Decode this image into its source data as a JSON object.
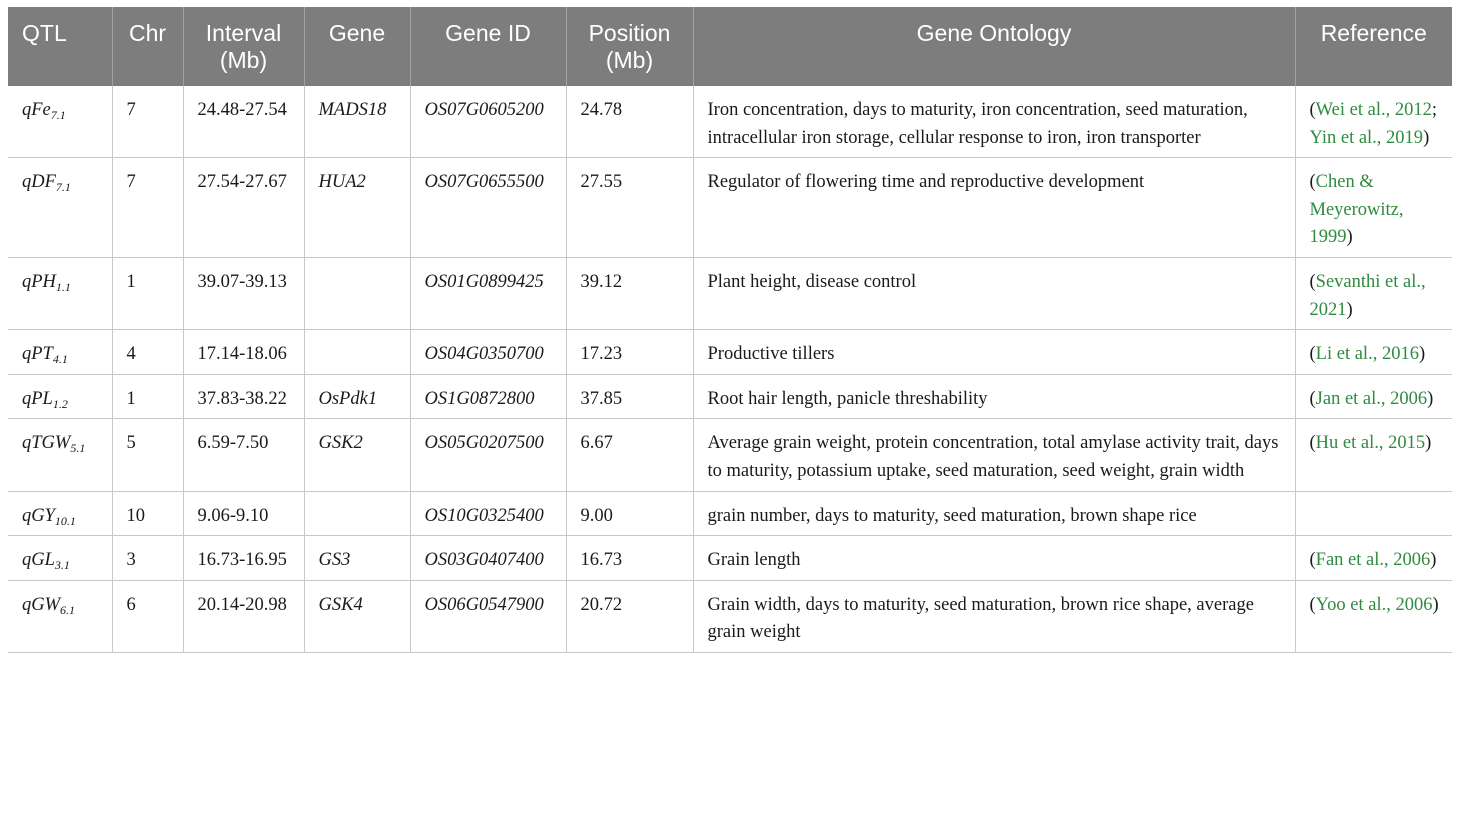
{
  "columns": [
    "QTL",
    "Chr",
    "Interval (Mb)",
    "Gene",
    "Gene ID",
    "Position (Mb)",
    "Gene Ontology",
    "Reference"
  ],
  "rows": [
    {
      "qtl_base": "qFe",
      "qtl_sub": "7.1",
      "chr": "7",
      "interval": "24.48-27.54",
      "gene": "MADS18",
      "gene_id": "OS07G0605200",
      "position": "24.78",
      "ontology": "Iron concentration, days to maturity, iron concentration, seed maturation, intracellular iron storage, cellular response to iron, iron transporter",
      "refs": [
        "Wei et al., 2012",
        "Yin et al., 2019"
      ]
    },
    {
      "qtl_base": "qDF",
      "qtl_sub": "7.1",
      "chr": "7",
      "interval": "27.54-27.67",
      "gene": "HUA2",
      "gene_id": "OS07G0655500",
      "position": "27.55",
      "ontology": "Regulator of flowering time and reproductive development",
      "refs": [
        "Chen & Meyerowitz, 1999"
      ]
    },
    {
      "qtl_base": "qPH",
      "qtl_sub": "1.1",
      "chr": "1",
      "interval": "39.07-39.13",
      "gene": "",
      "gene_id": "OS01G0899425",
      "position": "39.12",
      "ontology": "Plant height, disease control",
      "refs": [
        "Sevanthi et al., 2021"
      ]
    },
    {
      "qtl_base": "qPT",
      "qtl_sub": "4.1",
      "chr": "4",
      "interval": "17.14-18.06",
      "gene": "",
      "gene_id": "OS04G0350700",
      "position": "17.23",
      "ontology": "Productive tillers",
      "refs": [
        "Li et al., 2016"
      ]
    },
    {
      "qtl_base": "qPL",
      "qtl_sub": "1.2",
      "chr": "1",
      "interval": "37.83-38.22",
      "gene": "OsPdk1",
      "gene_id": "OS1G0872800",
      "position": "37.85",
      "ontology": "Root hair length, panicle threshability",
      "refs": [
        "Jan et al., 2006"
      ]
    },
    {
      "qtl_base": "qTGW",
      "qtl_sub": "5.1",
      "chr": "5",
      "interval": "6.59-7.50",
      "gene": "GSK2",
      "gene_id": "OS05G0207500",
      "position": "6.67",
      "ontology": "Average grain weight, protein concentration, total amylase activity trait, days to maturity, potassium uptake, seed maturation, seed weight, grain width",
      "refs": [
        "Hu et al., 2015"
      ]
    },
    {
      "qtl_base": "qGY",
      "qtl_sub": "10.1",
      "chr": "10",
      "interval": "9.06-9.10",
      "gene": "",
      "gene_id": "OS10G0325400",
      "position": "9.00",
      "ontology": "grain number, days to maturity, seed maturation, brown shape rice",
      "refs": []
    },
    {
      "qtl_base": "qGL",
      "qtl_sub": "3.1",
      "chr": "3",
      "interval": "16.73-16.95",
      "gene": "GS3",
      "gene_id": "OS03G0407400",
      "position": "16.73",
      "ontology": "Grain length",
      "refs": [
        "Fan et al., 2006"
      ]
    },
    {
      "qtl_base": "qGW",
      "qtl_sub": "6.1",
      "chr": "6",
      "interval": "20.14-20.98",
      "gene": "GSK4",
      "gene_id": "OS06G0547900",
      "position": "20.72",
      "ontology": "Grain width, days to maturity, seed maturation, brown rice shape, average grain weight",
      "refs": [
        "Yoo et al., 2006"
      ]
    }
  ],
  "colors": {
    "header_bg": "#7d7d7d",
    "header_text": "#ffffff",
    "link": "#2e8b3f",
    "border": "#c8c8c8"
  }
}
